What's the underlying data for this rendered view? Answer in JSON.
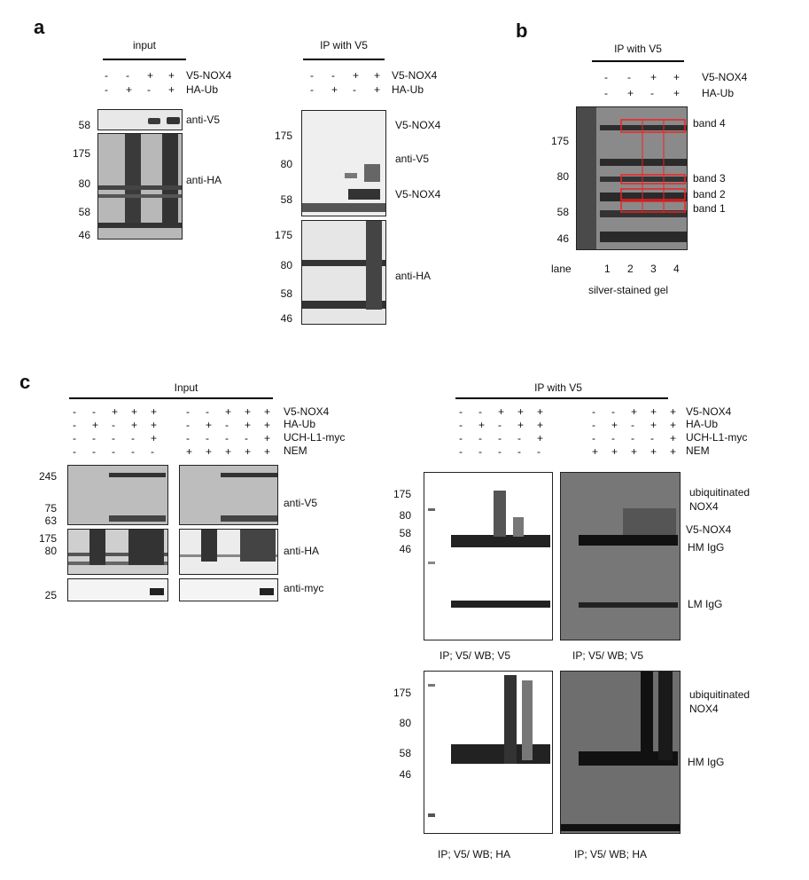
{
  "panels": {
    "a": {
      "letter": "a",
      "input": {
        "title": "input",
        "rows": [
          {
            "label": "V5-NOX4",
            "signs": [
              "-",
              "-",
              "+",
              "+"
            ]
          },
          {
            "label": "HA-Ub",
            "signs": [
              "-",
              "+",
              "-",
              "+"
            ]
          }
        ],
        "blots": [
          {
            "antibody": "anti-V5",
            "markers": [
              "58"
            ]
          },
          {
            "antibody": "anti-HA",
            "markers": [
              "175",
              "80",
              "58",
              "46"
            ]
          }
        ]
      },
      "ip": {
        "title": "IP with V5",
        "rows": [
          {
            "label": "V5-NOX4",
            "signs": [
              "-",
              "-",
              "+",
              "+"
            ]
          },
          {
            "label": "HA-Ub",
            "signs": [
              "-",
              "+",
              "-",
              "+"
            ]
          }
        ],
        "blots": [
          {
            "antibody": "anti-V5",
            "markers": [
              "175",
              "80",
              "58"
            ],
            "annotations": [
              "V5-NOX4",
              "V5-NOX4"
            ]
          },
          {
            "antibody": "anti-HA",
            "markers": [
              "175",
              "80",
              "58",
              "46"
            ]
          }
        ]
      }
    },
    "b": {
      "letter": "b",
      "title": "IP with V5",
      "rows": [
        {
          "label": "V5-NOX4",
          "signs": [
            "-",
            "-",
            "+",
            "+"
          ]
        },
        {
          "label": "HA-Ub",
          "signs": [
            "-",
            "+",
            "-",
            "+"
          ]
        }
      ],
      "markers": [
        "175",
        "80",
        "58",
        "46"
      ],
      "bands": [
        "band 4",
        "band 3",
        "band 2",
        "band 1"
      ],
      "lane_label": "lane",
      "lanes": [
        "1",
        "2",
        "3",
        "4"
      ],
      "caption": "silver-stained gel"
    },
    "c": {
      "letter": "c",
      "input": {
        "title": "Input",
        "rows": [
          {
            "label": "V5-NOX4",
            "signs": [
              "-",
              "-",
              "+",
              "+",
              "+",
              "-",
              "-",
              "+",
              "+",
              "+"
            ]
          },
          {
            "label": "HA-Ub",
            "signs": [
              "-",
              "+",
              "-",
              "+",
              "+",
              "-",
              "+",
              "-",
              "+",
              "+"
            ]
          },
          {
            "label": "UCH-L1-myc",
            "signs": [
              "-",
              "-",
              "-",
              "-",
              "+",
              "-",
              "-",
              "-",
              "-",
              "+"
            ]
          },
          {
            "label": "NEM",
            "signs": [
              "-",
              "-",
              "-",
              "-",
              "-",
              "+",
              "+",
              "+",
              "+",
              "+"
            ]
          }
        ],
        "blots": [
          {
            "antibody": "anti-V5",
            "markers": [
              "245",
              "75",
              "63"
            ]
          },
          {
            "antibody": "anti-HA",
            "markers": [
              "175",
              "80"
            ]
          },
          {
            "antibody": "anti-myc",
            "markers": [
              "25"
            ]
          }
        ]
      },
      "ip": {
        "title": "IP with V5",
        "rows": [
          {
            "label": "V5-NOX4",
            "signs": [
              "-",
              "-",
              "+",
              "+",
              "+",
              "-",
              "-",
              "+",
              "+",
              "+"
            ]
          },
          {
            "label": "HA-Ub",
            "signs": [
              "-",
              "+",
              "-",
              "+",
              "+",
              "-",
              "+",
              "-",
              "+",
              "+"
            ]
          },
          {
            "label": "UCH-L1-myc",
            "signs": [
              "-",
              "-",
              "-",
              "-",
              "+",
              "-",
              "-",
              "-",
              "-",
              "+"
            ]
          },
          {
            "label": "NEM",
            "signs": [
              "-",
              "-",
              "-",
              "-",
              "-",
              "+",
              "+",
              "+",
              "+",
              "+"
            ]
          }
        ],
        "top_markers": [
          "175",
          "80",
          "58",
          "46"
        ],
        "bottom_markers": [
          "175",
          "80",
          "58",
          "46"
        ],
        "top_annotations": [
          "ubiquitinated",
          "NOX4",
          "V5-NOX4",
          "HM IgG",
          "LM IgG"
        ],
        "bottom_annotations": [
          "ubiquitinated",
          "NOX4",
          "HM IgG"
        ],
        "captions": [
          "IP; V5/ WB; V5",
          "IP; V5/ WB; V5",
          "IP; V5/ WB; HA",
          "IP; V5/ WB; HA"
        ]
      }
    }
  }
}
